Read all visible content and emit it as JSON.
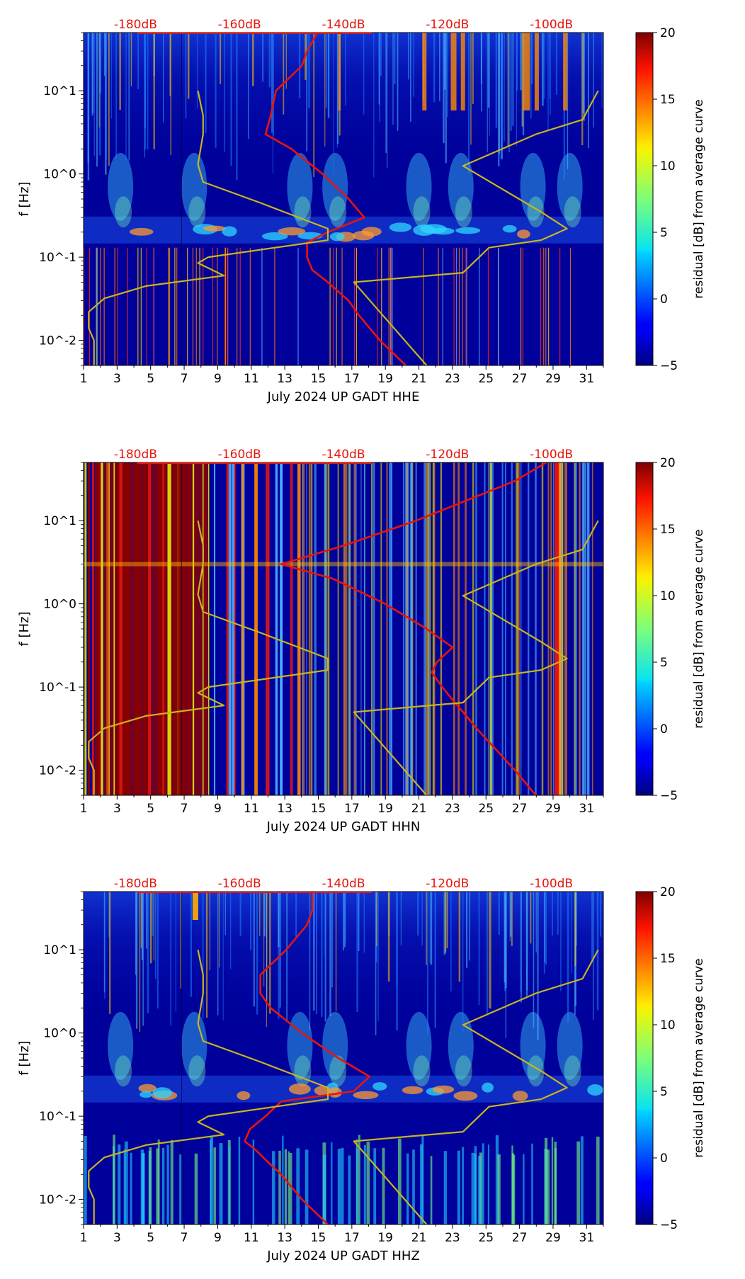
{
  "chart_data": [
    {
      "type": "heatmap",
      "component": "HHE",
      "xlabel": "July 2024 UP GADT  HHE",
      "ylabel": "f [Hz]",
      "xlim": [
        1,
        32
      ],
      "ylim_hz": [
        0.005,
        50
      ],
      "yscale": "log",
      "x_ticks": [
        "1",
        "3",
        "5",
        "7",
        "9",
        "11",
        "13",
        "15",
        "17",
        "19",
        "21",
        "23",
        "25",
        "27",
        "29",
        "31"
      ],
      "y_ticks": [
        "10^-2",
        "10^-1",
        "10^0",
        "10^1"
      ],
      "top_db_labels": [
        "-180dB",
        "-160dB",
        "-140dB",
        "-120dB",
        "-100dB"
      ],
      "db_axis": {
        "ticks": [
          -180,
          -160,
          -140,
          -120,
          -100
        ],
        "range": [
          -190,
          -90
        ]
      },
      "colorbar": {
        "label": "residual [dB] from average curve",
        "range": [
          -5,
          20
        ],
        "ticks": [
          "20",
          "15",
          "10",
          "5",
          "0",
          "−5"
        ]
      },
      "series": [
        {
          "name": "average PSD",
          "color": "#e8140c",
          "freq_hz": [
            50,
            30,
            20,
            10,
            5,
            3,
            2,
            1,
            0.5,
            0.3,
            0.2,
            0.15,
            0.1,
            0.07,
            0.05,
            0.03,
            0.02,
            0.01,
            0.005
          ],
          "db": [
            -145,
            -147,
            -148,
            -153,
            -154,
            -155,
            -150,
            -144,
            -139,
            -136,
            -143,
            -147,
            -147,
            -146,
            -143,
            -139,
            -137,
            -133,
            -128
          ]
        },
        {
          "name": "NLNM",
          "color": "#c8b41e",
          "freq_hz": [
            10,
            5,
            3,
            1.3,
            0.8,
            0.45,
            0.22,
            0.16,
            0.1,
            0.085,
            0.06,
            0.045,
            0.032,
            0.022,
            0.014,
            0.01,
            0.005
          ],
          "db": [
            -168,
            -167,
            -167,
            -168,
            -167,
            -156,
            -143,
            -143,
            -166,
            -168,
            -163,
            -178,
            -186,
            -189,
            -189,
            -188,
            -188
          ]
        },
        {
          "name": "NHNM",
          "color": "#c8b41e",
          "freq_hz": [
            10,
            4.5,
            3,
            1.25,
            0.35,
            0.22,
            0.16,
            0.13,
            0.065,
            0.05,
            0.005
          ],
          "db": [
            -91,
            -94,
            -103,
            -117,
            -102,
            -97,
            -102,
            -112,
            -117,
            -138,
            -124
          ]
        }
      ]
    },
    {
      "type": "heatmap",
      "component": "HHN",
      "xlabel": "July 2024 UP GADT  HHN",
      "ylabel": "f [Hz]",
      "xlim": [
        1,
        32
      ],
      "ylim_hz": [
        0.005,
        50
      ],
      "yscale": "log",
      "x_ticks": [
        "1",
        "3",
        "5",
        "7",
        "9",
        "11",
        "13",
        "15",
        "17",
        "19",
        "21",
        "23",
        "25",
        "27",
        "29",
        "31"
      ],
      "y_ticks": [
        "10^-2",
        "10^-1",
        "10^0",
        "10^1"
      ],
      "top_db_labels": [
        "-180dB",
        "-160dB",
        "-140dB",
        "-120dB",
        "-100dB"
      ],
      "db_axis": {
        "ticks": [
          -180,
          -160,
          -140,
          -120,
          -100
        ],
        "range": [
          -190,
          -90
        ]
      },
      "colorbar": {
        "label": "residual [dB] from average curve",
        "range": [
          -5,
          20
        ],
        "ticks": [
          "20",
          "15",
          "10",
          "5",
          "0",
          "−5"
        ]
      },
      "series": [
        {
          "name": "average PSD",
          "color": "#e8140c",
          "freq_hz": [
            50,
            30,
            10,
            5,
            3,
            2,
            1,
            0.5,
            0.3,
            0.2,
            0.15,
            0.1,
            0.07,
            0.05,
            0.03,
            0.01,
            0.005
          ],
          "db": [
            -101,
            -107,
            -126,
            -140,
            -152,
            -142,
            -132,
            -124,
            -119,
            -122,
            -123,
            -121,
            -119,
            -117,
            -114,
            -107,
            -103
          ]
        },
        {
          "name": "NLNM",
          "color": "#c8b41e",
          "freq_hz": [
            10,
            5,
            3,
            1.3,
            0.8,
            0.45,
            0.22,
            0.16,
            0.1,
            0.085,
            0.06,
            0.045,
            0.032,
            0.022,
            0.014,
            0.01,
            0.005
          ],
          "db": [
            -168,
            -167,
            -167,
            -168,
            -167,
            -156,
            -143,
            -143,
            -166,
            -168,
            -163,
            -178,
            -186,
            -189,
            -189,
            -188,
            -188
          ]
        },
        {
          "name": "NHNM",
          "color": "#c8b41e",
          "freq_hz": [
            10,
            4.5,
            3,
            1.25,
            0.35,
            0.22,
            0.16,
            0.13,
            0.065,
            0.05,
            0.005
          ],
          "db": [
            -91,
            -94,
            -103,
            -117,
            -102,
            -97,
            -102,
            -112,
            -117,
            -138,
            -124
          ]
        }
      ]
    },
    {
      "type": "heatmap",
      "component": "HHZ",
      "xlabel": "July 2024 UP GADT  HHZ",
      "ylabel": "f [Hz]",
      "xlim": [
        1,
        32
      ],
      "ylim_hz": [
        0.005,
        50
      ],
      "yscale": "log",
      "x_ticks": [
        "1",
        "3",
        "5",
        "7",
        "9",
        "11",
        "13",
        "15",
        "17",
        "19",
        "21",
        "23",
        "25",
        "27",
        "29",
        "31"
      ],
      "y_ticks": [
        "10^-2",
        "10^-1",
        "10^0",
        "10^1"
      ],
      "top_db_labels": [
        "-180dB",
        "-160dB",
        "-140dB",
        "-120dB",
        "-100dB"
      ],
      "db_axis": {
        "ticks": [
          -180,
          -160,
          -140,
          -120,
          -100
        ],
        "range": [
          -190,
          -90
        ]
      },
      "colorbar": {
        "label": "residual [dB] from average curve",
        "range": [
          -5,
          20
        ],
        "ticks": [
          "20",
          "15",
          "10",
          "5",
          "0",
          "−5"
        ]
      },
      "series": [
        {
          "name": "average PSD",
          "color": "#e8140c",
          "freq_hz": [
            50,
            30,
            20,
            10,
            5,
            3,
            2,
            1,
            0.5,
            0.3,
            0.2,
            0.15,
            0.1,
            0.07,
            0.05,
            0.04,
            0.03,
            0.02,
            0.01,
            0.005
          ],
          "db": [
            -146,
            -146,
            -147,
            -151,
            -156,
            -156,
            -154,
            -148,
            -141,
            -135,
            -138,
            -152,
            -155,
            -158,
            -159,
            -157,
            -155,
            -152,
            -148,
            -143
          ]
        },
        {
          "name": "NLNM",
          "color": "#c8b41e",
          "freq_hz": [
            10,
            5,
            3,
            1.3,
            0.8,
            0.45,
            0.22,
            0.16,
            0.1,
            0.085,
            0.06,
            0.045,
            0.032,
            0.022,
            0.014,
            0.01,
            0.005
          ],
          "db": [
            -168,
            -167,
            -167,
            -168,
            -167,
            -156,
            -143,
            -143,
            -166,
            -168,
            -163,
            -178,
            -186,
            -189,
            -189,
            -188,
            -188
          ]
        },
        {
          "name": "NHNM",
          "color": "#c8b41e",
          "freq_hz": [
            10,
            4.5,
            3,
            1.25,
            0.35,
            0.22,
            0.16,
            0.13,
            0.065,
            0.05,
            0.005
          ],
          "db": [
            -91,
            -94,
            -103,
            -117,
            -102,
            -97,
            -102,
            -112,
            -117,
            -138,
            -124
          ]
        }
      ]
    }
  ]
}
